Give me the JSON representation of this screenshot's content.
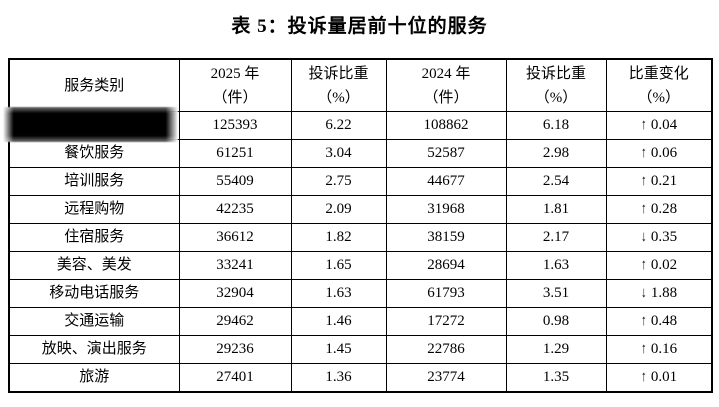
{
  "title": "表 5：投诉量居前十位的服务",
  "table": {
    "columns": [
      {
        "line1": "服务类别",
        "line2": ""
      },
      {
        "line1": "2025 年",
        "line2": "（件）"
      },
      {
        "line1": "投诉比重",
        "line2": "（%）"
      },
      {
        "line1": "2024 年",
        "line2": "（件）"
      },
      {
        "line1": "投诉比重",
        "line2": "（%）"
      },
      {
        "line1": "比重变化",
        "line2": "（%）"
      }
    ],
    "rows": [
      {
        "category": "",
        "redacted": true,
        "complaints_2025": "125393",
        "share_2025": "6.22",
        "complaints_2024": "108862",
        "share_2024": "6.18",
        "arrow": "↑",
        "direction": "up",
        "change": "0.04"
      },
      {
        "category": "餐饮服务",
        "redacted": false,
        "complaints_2025": "61251",
        "share_2025": "3.04",
        "complaints_2024": "52587",
        "share_2024": "2.98",
        "arrow": "↑",
        "direction": "up",
        "change": "0.06"
      },
      {
        "category": "培训服务",
        "redacted": false,
        "complaints_2025": "55409",
        "share_2025": "2.75",
        "complaints_2024": "44677",
        "share_2024": "2.54",
        "arrow": "↑",
        "direction": "up",
        "change": "0.21"
      },
      {
        "category": "远程购物",
        "redacted": false,
        "complaints_2025": "42235",
        "share_2025": "2.09",
        "complaints_2024": "31968",
        "share_2024": "1.81",
        "arrow": "↑",
        "direction": "up",
        "change": "0.28"
      },
      {
        "category": "住宿服务",
        "redacted": false,
        "complaints_2025": "36612",
        "share_2025": "1.82",
        "complaints_2024": "38159",
        "share_2024": "2.17",
        "arrow": "↓",
        "direction": "down",
        "change": "0.35"
      },
      {
        "category": "美容、美发",
        "redacted": false,
        "complaints_2025": "33241",
        "share_2025": "1.65",
        "complaints_2024": "28694",
        "share_2024": "1.63",
        "arrow": "↑",
        "direction": "up",
        "change": "0.02"
      },
      {
        "category": "移动电话服务",
        "redacted": false,
        "complaints_2025": "32904",
        "share_2025": "1.63",
        "complaints_2024": "61793",
        "share_2024": "3.51",
        "arrow": "↓",
        "direction": "down",
        "change": "1.88"
      },
      {
        "category": "交通运输",
        "redacted": false,
        "complaints_2025": "29462",
        "share_2025": "1.46",
        "complaints_2024": "17272",
        "share_2024": "0.98",
        "arrow": "↑",
        "direction": "up",
        "change": "0.48"
      },
      {
        "category": "放映、演出服务",
        "redacted": false,
        "complaints_2025": "29236",
        "share_2025": "1.45",
        "complaints_2024": "22786",
        "share_2024": "1.29",
        "arrow": "↑",
        "direction": "up",
        "change": "0.16"
      },
      {
        "category": "旅游",
        "redacted": false,
        "complaints_2025": "27401",
        "share_2025": "1.36",
        "complaints_2024": "23774",
        "share_2024": "1.35",
        "arrow": "↑",
        "direction": "up",
        "change": "0.01"
      }
    ]
  }
}
